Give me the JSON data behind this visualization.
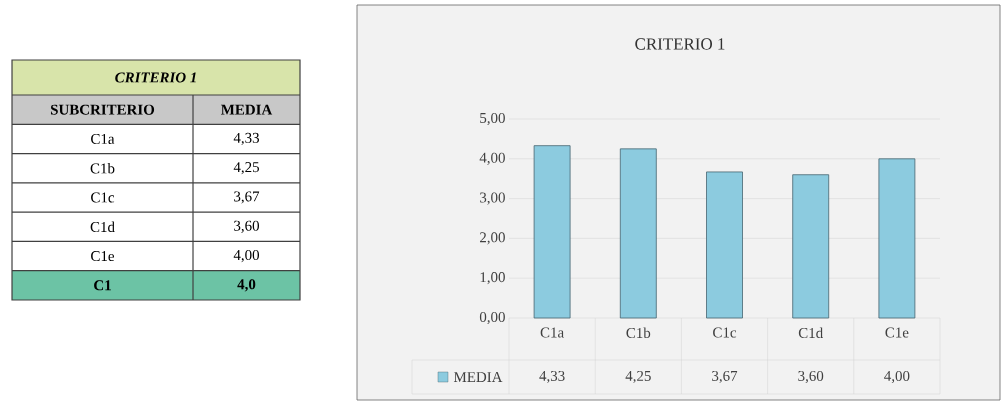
{
  "chart_data": [
    {
      "type": "other",
      "title": "CRITERIO 1",
      "annotations": [
        "SUBCRITERIO",
        "MEDIA",
        "C1a",
        "4,33",
        "C1b",
        "4,25",
        "C1c",
        "3,67",
        "C1d",
        "3,60",
        "C1e",
        "4,00",
        "C1",
        "4,0"
      ]
    },
    {
      "type": "bar",
      "title": "CRITERIO 1",
      "categories": [
        "C1a",
        "C1b",
        "C1c",
        "C1d",
        "C1e"
      ],
      "series": [
        {
          "name": "MEDIA",
          "color": "#8ccbdf",
          "values": [
            4.33,
            4.25,
            3.67,
            3.6,
            4.0
          ],
          "value_labels": [
            "4,33",
            "4,25",
            "3,67",
            "3,60",
            "4,00"
          ]
        }
      ],
      "ylim": [
        0,
        5
      ],
      "yticks": [
        {
          "value": 0,
          "label": "0,00"
        },
        {
          "value": 1,
          "label": "1,00"
        },
        {
          "value": 2,
          "label": "2,00"
        },
        {
          "value": 3,
          "label": "3,00"
        },
        {
          "value": 4,
          "label": "4,00"
        },
        {
          "value": 5,
          "label": "5,00"
        }
      ],
      "grid": "y",
      "legend": "bottom left"
    }
  ]
}
